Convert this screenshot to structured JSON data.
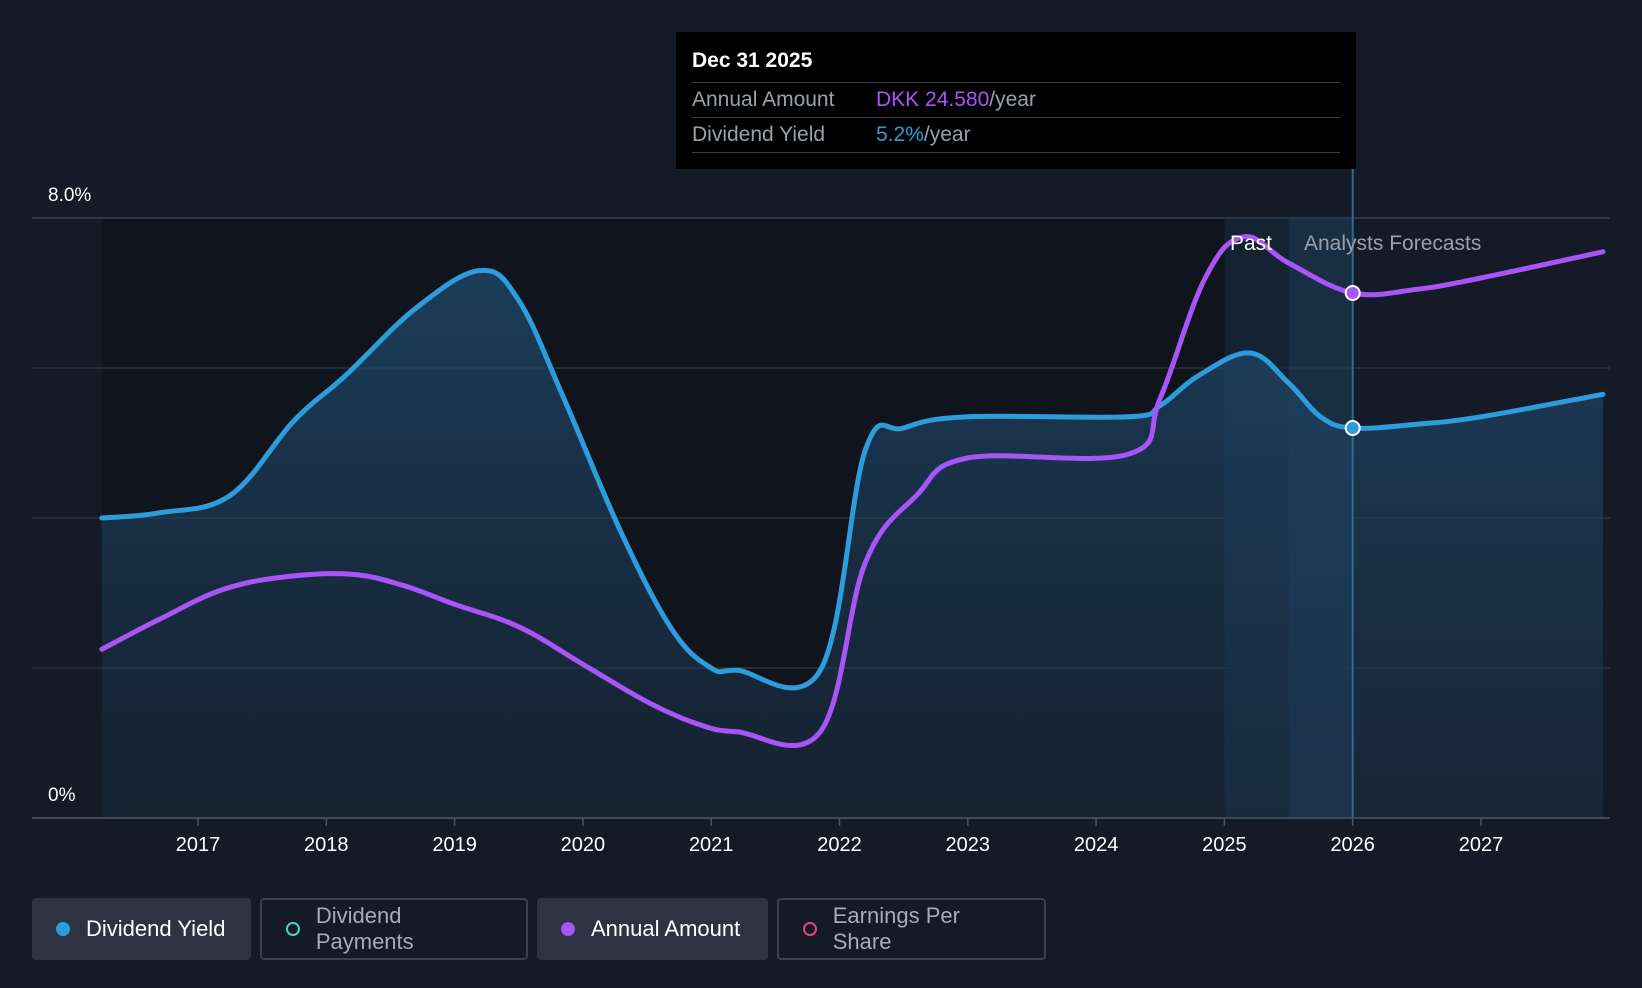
{
  "tooltip": {
    "date": "Dec 31 2025",
    "amount_label": "Annual Amount",
    "amount_value": "DKK 24.580",
    "amount_unit": "/year",
    "yield_label": "Dividend Yield",
    "yield_value": "5.2%",
    "yield_unit": "/year"
  },
  "legend": [
    {
      "label": "Dividend Yield",
      "color": "#2d9cdb",
      "active": true
    },
    {
      "label": "Dividend Payments",
      "color": "#4fd1c5",
      "active": false
    },
    {
      "label": "Annual Amount",
      "color": "#a855f7",
      "active": true
    },
    {
      "label": "Earnings Per Share",
      "color": "#e0457b",
      "active": false
    }
  ],
  "colors": {
    "yield": "#2d9cdb",
    "amount": "#a855f7",
    "background": "#151b26",
    "grid": "#2a3140"
  },
  "chart_data": {
    "type": "line",
    "title": "",
    "ylim": [
      0,
      8
    ],
    "y_ticks": [
      "8.0%",
      "0%"
    ],
    "x_ticks": [
      "2017",
      "2018",
      "2019",
      "2020",
      "2021",
      "2022",
      "2023",
      "2024",
      "2025",
      "2026",
      "2027"
    ],
    "xlim": [
      2016.25,
      2027.95
    ],
    "region_labels": {
      "past": "Past",
      "forecast": "Analysts Forecasts"
    },
    "series": [
      {
        "name": "Dividend Yield",
        "unit": "%",
        "points": [
          [
            2016.25,
            4.0
          ],
          [
            2016.7,
            4.07
          ],
          [
            2017.25,
            4.3
          ],
          [
            2017.75,
            5.3
          ],
          [
            2018.15,
            5.9
          ],
          [
            2018.7,
            6.8
          ],
          [
            2019.2,
            7.3
          ],
          [
            2019.5,
            6.9
          ],
          [
            2019.85,
            5.6
          ],
          [
            2020.3,
            3.8
          ],
          [
            2020.7,
            2.5
          ],
          [
            2021.0,
            2.0
          ],
          [
            2021.2,
            1.97
          ],
          [
            2021.85,
            1.97
          ],
          [
            2022.2,
            4.9
          ],
          [
            2022.5,
            5.2
          ],
          [
            2023.0,
            5.35
          ],
          [
            2024.25,
            5.35
          ],
          [
            2024.5,
            5.5
          ],
          [
            2024.8,
            5.9
          ],
          [
            2025.2,
            6.2
          ],
          [
            2025.5,
            5.8
          ],
          [
            2025.75,
            5.35
          ],
          [
            2026.0,
            5.2
          ],
          [
            2026.5,
            5.25
          ],
          [
            2027.0,
            5.35
          ],
          [
            2027.95,
            5.65
          ]
        ]
      },
      {
        "name": "Annual Amount",
        "unit": "DKK",
        "points": [
          [
            2016.25,
            2.25
          ],
          [
            2016.7,
            2.65
          ],
          [
            2017.2,
            3.05
          ],
          [
            2017.7,
            3.22
          ],
          [
            2018.2,
            3.25
          ],
          [
            2018.6,
            3.1
          ],
          [
            2019.0,
            2.85
          ],
          [
            2019.5,
            2.55
          ],
          [
            2020.0,
            2.05
          ],
          [
            2020.5,
            1.55
          ],
          [
            2020.9,
            1.25
          ],
          [
            2021.2,
            1.15
          ],
          [
            2021.85,
            1.15
          ],
          [
            2022.2,
            3.4
          ],
          [
            2022.6,
            4.3
          ],
          [
            2023.0,
            4.8
          ],
          [
            2024.25,
            4.85
          ],
          [
            2024.5,
            5.6
          ],
          [
            2024.85,
            7.2
          ],
          [
            2025.15,
            7.75
          ],
          [
            2025.5,
            7.4
          ],
          [
            2026.0,
            7.0
          ],
          [
            2026.5,
            7.05
          ],
          [
            2027.0,
            7.2
          ],
          [
            2027.95,
            7.55
          ]
        ]
      }
    ],
    "highlight_x": 2026.0,
    "past_band": [
      2025.0,
      2025.5
    ],
    "forecast_band": [
      2025.5,
      2026.0
    ]
  }
}
